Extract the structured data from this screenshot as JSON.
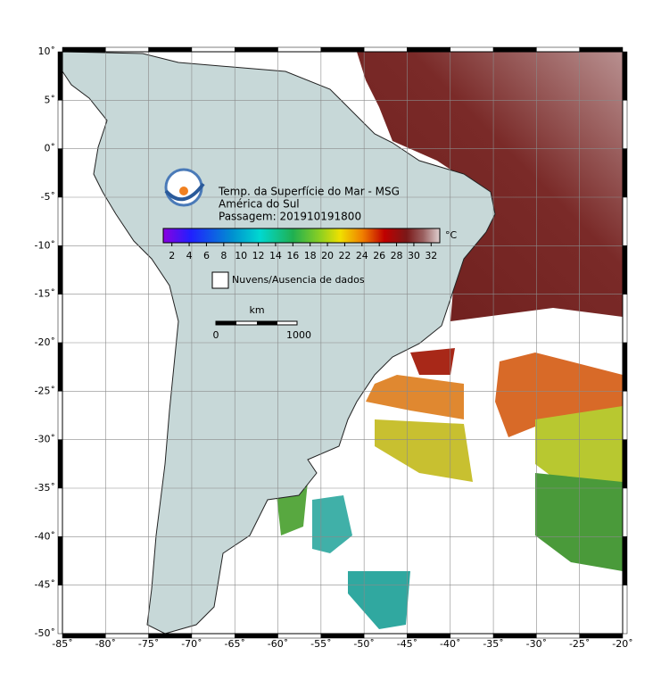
{
  "map": {
    "title_lines": [
      "Temp. da Superfície do Mar - MSG",
      "América do Sul",
      "Passagem: 201910191800"
    ],
    "xlim": [
      -85,
      -20
    ],
    "ylim": [
      -50,
      10
    ],
    "xticks": [
      {
        "value": -85,
        "label": "-85˚"
      },
      {
        "value": -80,
        "label": "-80˚"
      },
      {
        "value": -75,
        "label": "-75˚"
      },
      {
        "value": -70,
        "label": "-70˚"
      },
      {
        "value": -65,
        "label": "-65˚"
      },
      {
        "value": -60,
        "label": "-60˚"
      },
      {
        "value": -55,
        "label": "-55˚"
      },
      {
        "value": -50,
        "label": "-50˚"
      },
      {
        "value": -45,
        "label": "-45˚"
      },
      {
        "value": -40,
        "label": "-40˚"
      },
      {
        "value": -35,
        "label": "-35˚"
      },
      {
        "value": -30,
        "label": "-30˚"
      },
      {
        "value": -25,
        "label": "-25˚"
      },
      {
        "value": -20,
        "label": "-20˚"
      }
    ],
    "yticks": [
      {
        "value": 10,
        "label": "10˚"
      },
      {
        "value": 5,
        "label": "5˚"
      },
      {
        "value": 0,
        "label": "0˚"
      },
      {
        "value": -5,
        "label": "-5˚"
      },
      {
        "value": -10,
        "label": "-10˚"
      },
      {
        "value": -15,
        "label": "-15˚"
      },
      {
        "value": -20,
        "label": "-20˚"
      },
      {
        "value": -25,
        "label": "-25˚"
      },
      {
        "value": -30,
        "label": "-30˚"
      },
      {
        "value": -35,
        "label": "-35˚"
      },
      {
        "value": -40,
        "label": "-40˚"
      },
      {
        "value": -45,
        "label": "-45˚"
      },
      {
        "value": -50,
        "label": "-50˚"
      }
    ],
    "grid": true,
    "colorbar": {
      "unit": "°C",
      "clim": [
        1,
        33
      ],
      "ticks": [
        2,
        4,
        6,
        8,
        10,
        12,
        14,
        16,
        18,
        20,
        22,
        24,
        26,
        28,
        30,
        32
      ]
    },
    "legend": "Nuvens/Ausencia de dados",
    "scale_bar": {
      "unit": "km",
      "ticks": [
        0,
        1000
      ]
    }
  }
}
